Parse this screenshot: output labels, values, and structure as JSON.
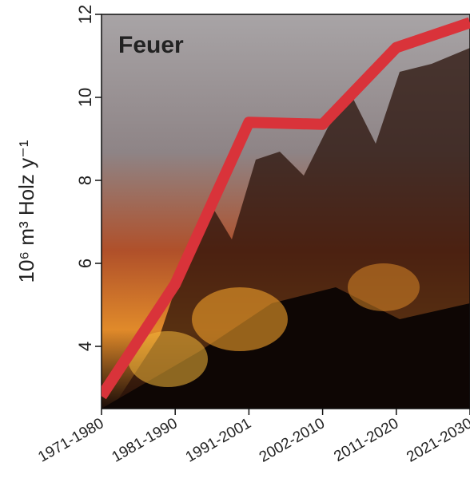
{
  "chart_data": {
    "type": "line",
    "title": "Feuer",
    "title_color": "#d9333a",
    "y_label": "10⁶ m³ Holz y⁻¹",
    "categories": [
      "1971-1980",
      "1981-1990",
      "1991-2001",
      "2002-2010",
      "2011-2020",
      "2021-2030"
    ],
    "series": [
      {
        "name": "Feuer",
        "color": "#d9333a",
        "values": [
          2.8,
          5.5,
          9.4,
          9.35,
          11.2,
          11.8
        ]
      }
    ],
    "ylim": [
      2.5,
      12
    ],
    "yticks": [
      4,
      6,
      8,
      10,
      12
    ]
  }
}
